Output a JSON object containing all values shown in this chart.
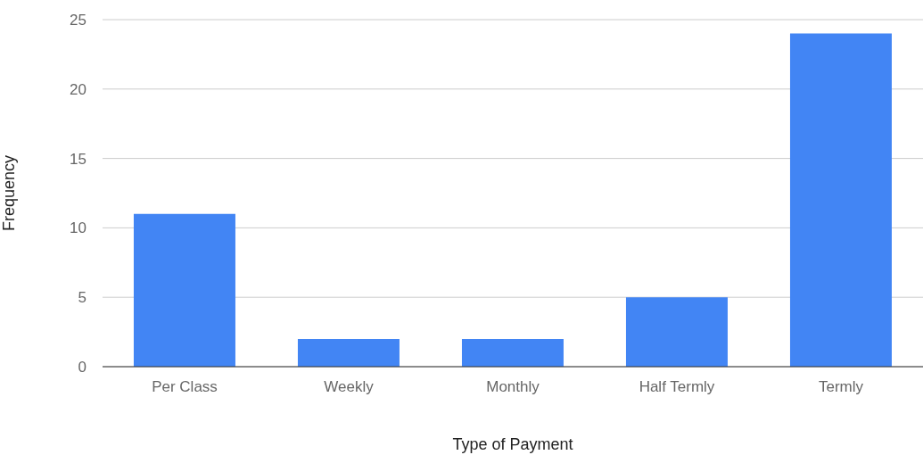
{
  "chart_data": {
    "type": "bar",
    "xlabel": "Type of Payment",
    "ylabel": "Frequency",
    "categories": [
      "Per Class",
      "Weekly",
      "Monthly",
      "Half Termly",
      "Termly"
    ],
    "values": [
      11,
      2,
      2,
      5,
      24
    ],
    "color": "#4285f4",
    "ylim": [
      0,
      25
    ],
    "yticks": [
      0,
      5,
      10,
      15,
      20,
      25
    ],
    "grid": "y"
  }
}
